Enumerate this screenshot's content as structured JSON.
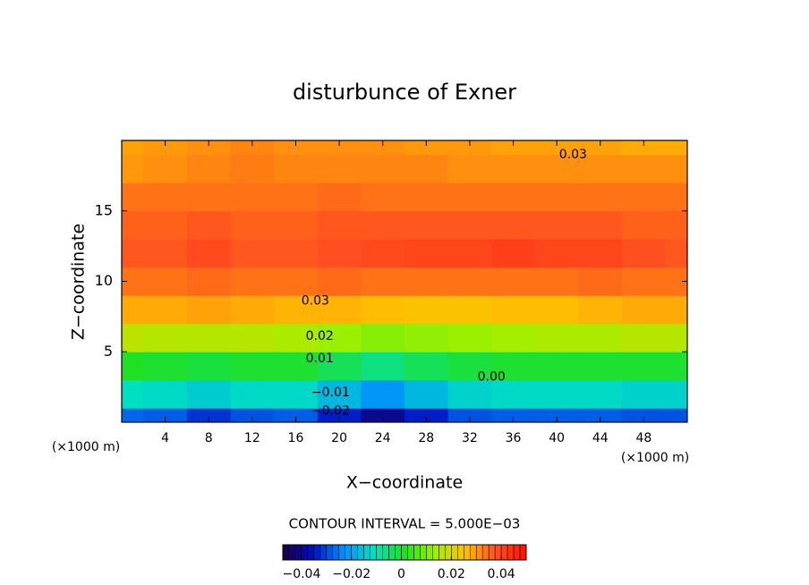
{
  "chart_data": {
    "type": "contour",
    "title": "disturbunce of Exner",
    "xlabel": "X−coordinate",
    "ylabel": "Z−coordinate",
    "x_unit_left": "(×1000 m)",
    "x_unit_right": "(×1000 m)",
    "contour_interval": "CONTOUR INTERVAL = 5.000E−03",
    "xlim": [
      0,
      52
    ],
    "ylim": [
      0,
      20
    ],
    "xticks": [
      4,
      8,
      12,
      16,
      20,
      24,
      28,
      32,
      36,
      40,
      44,
      48
    ],
    "yticks": [
      5,
      10,
      15
    ],
    "x": [
      0,
      4,
      8,
      12,
      16,
      20,
      24,
      28,
      32,
      36,
      40,
      44,
      48,
      52
    ],
    "y": [
      0,
      2,
      4,
      6,
      8,
      10,
      12,
      14,
      16,
      18,
      20
    ],
    "z": [
      [
        -0.027,
        -0.028,
        -0.032,
        -0.029,
        -0.028,
        -0.034,
        -0.04,
        -0.034,
        -0.029,
        -0.028,
        -0.028,
        -0.028,
        -0.029,
        -0.029
      ],
      [
        -0.011,
        -0.012,
        -0.014,
        -0.012,
        -0.012,
        -0.017,
        -0.022,
        -0.017,
        -0.013,
        -0.012,
        -0.012,
        -0.012,
        -0.013,
        -0.013
      ],
      [
        0.001,
        0.0,
        -0.001,
        0.0,
        0.0,
        -0.003,
        -0.006,
        -0.003,
        -0.001,
        0.0,
        0.0,
        0.0,
        0.0,
        0.0
      ],
      [
        0.017,
        0.016,
        0.016,
        0.016,
        0.015,
        0.013,
        0.011,
        0.012,
        0.013,
        0.014,
        0.015,
        0.015,
        0.016,
        0.016
      ],
      [
        0.028,
        0.028,
        0.029,
        0.028,
        0.027,
        0.027,
        0.026,
        0.025,
        0.025,
        0.026,
        0.026,
        0.027,
        0.028,
        0.028
      ],
      [
        0.034,
        0.034,
        0.035,
        0.034,
        0.034,
        0.035,
        0.034,
        0.034,
        0.034,
        0.034,
        0.034,
        0.035,
        0.034,
        0.034
      ],
      [
        0.037,
        0.037,
        0.039,
        0.037,
        0.037,
        0.038,
        0.039,
        0.04,
        0.04,
        0.041,
        0.04,
        0.04,
        0.038,
        0.037
      ],
      [
        0.036,
        0.036,
        0.037,
        0.036,
        0.036,
        0.037,
        0.037,
        0.037,
        0.037,
        0.037,
        0.037,
        0.037,
        0.036,
        0.036
      ],
      [
        0.034,
        0.034,
        0.034,
        0.034,
        0.034,
        0.035,
        0.034,
        0.034,
        0.034,
        0.034,
        0.034,
        0.034,
        0.034,
        0.034
      ],
      [
        0.03,
        0.031,
        0.032,
        0.033,
        0.032,
        0.032,
        0.032,
        0.032,
        0.031,
        0.031,
        0.031,
        0.031,
        0.031,
        0.031
      ],
      [
        0.029,
        0.03,
        0.031,
        0.032,
        0.031,
        0.031,
        0.031,
        0.03,
        0.03,
        0.029,
        0.029,
        0.029,
        0.028,
        0.028
      ]
    ],
    "clim": [
      -0.0475,
      0.05
    ],
    "colormap": [
      "#1a0040",
      "#0010c0",
      "#0090ff",
      "#00e0c0",
      "#20e020",
      "#a0f000",
      "#ffc000",
      "#ff5020",
      "#ff1000"
    ],
    "colorbar_ticks": [
      {
        "value": -0.04,
        "label": "−0.04"
      },
      {
        "value": -0.02,
        "label": "−0.02"
      },
      0,
      0.02,
      0.04
    ],
    "contour_labels": [
      {
        "text": "0.03",
        "x": 41.5,
        "y": 19.0
      },
      {
        "text": "0.03",
        "x": 17.8,
        "y": 8.6
      },
      {
        "text": "0.02",
        "x": 18.2,
        "y": 6.1
      },
      {
        "text": "0.01",
        "x": 18.2,
        "y": 4.5
      },
      {
        "text": "0.00",
        "x": 34,
        "y": 3.2
      },
      {
        "text": "−0.01",
        "x": 19.2,
        "y": 2.1
      },
      {
        "text": "−0.02",
        "x": 19.2,
        "y": 0.8
      }
    ]
  }
}
